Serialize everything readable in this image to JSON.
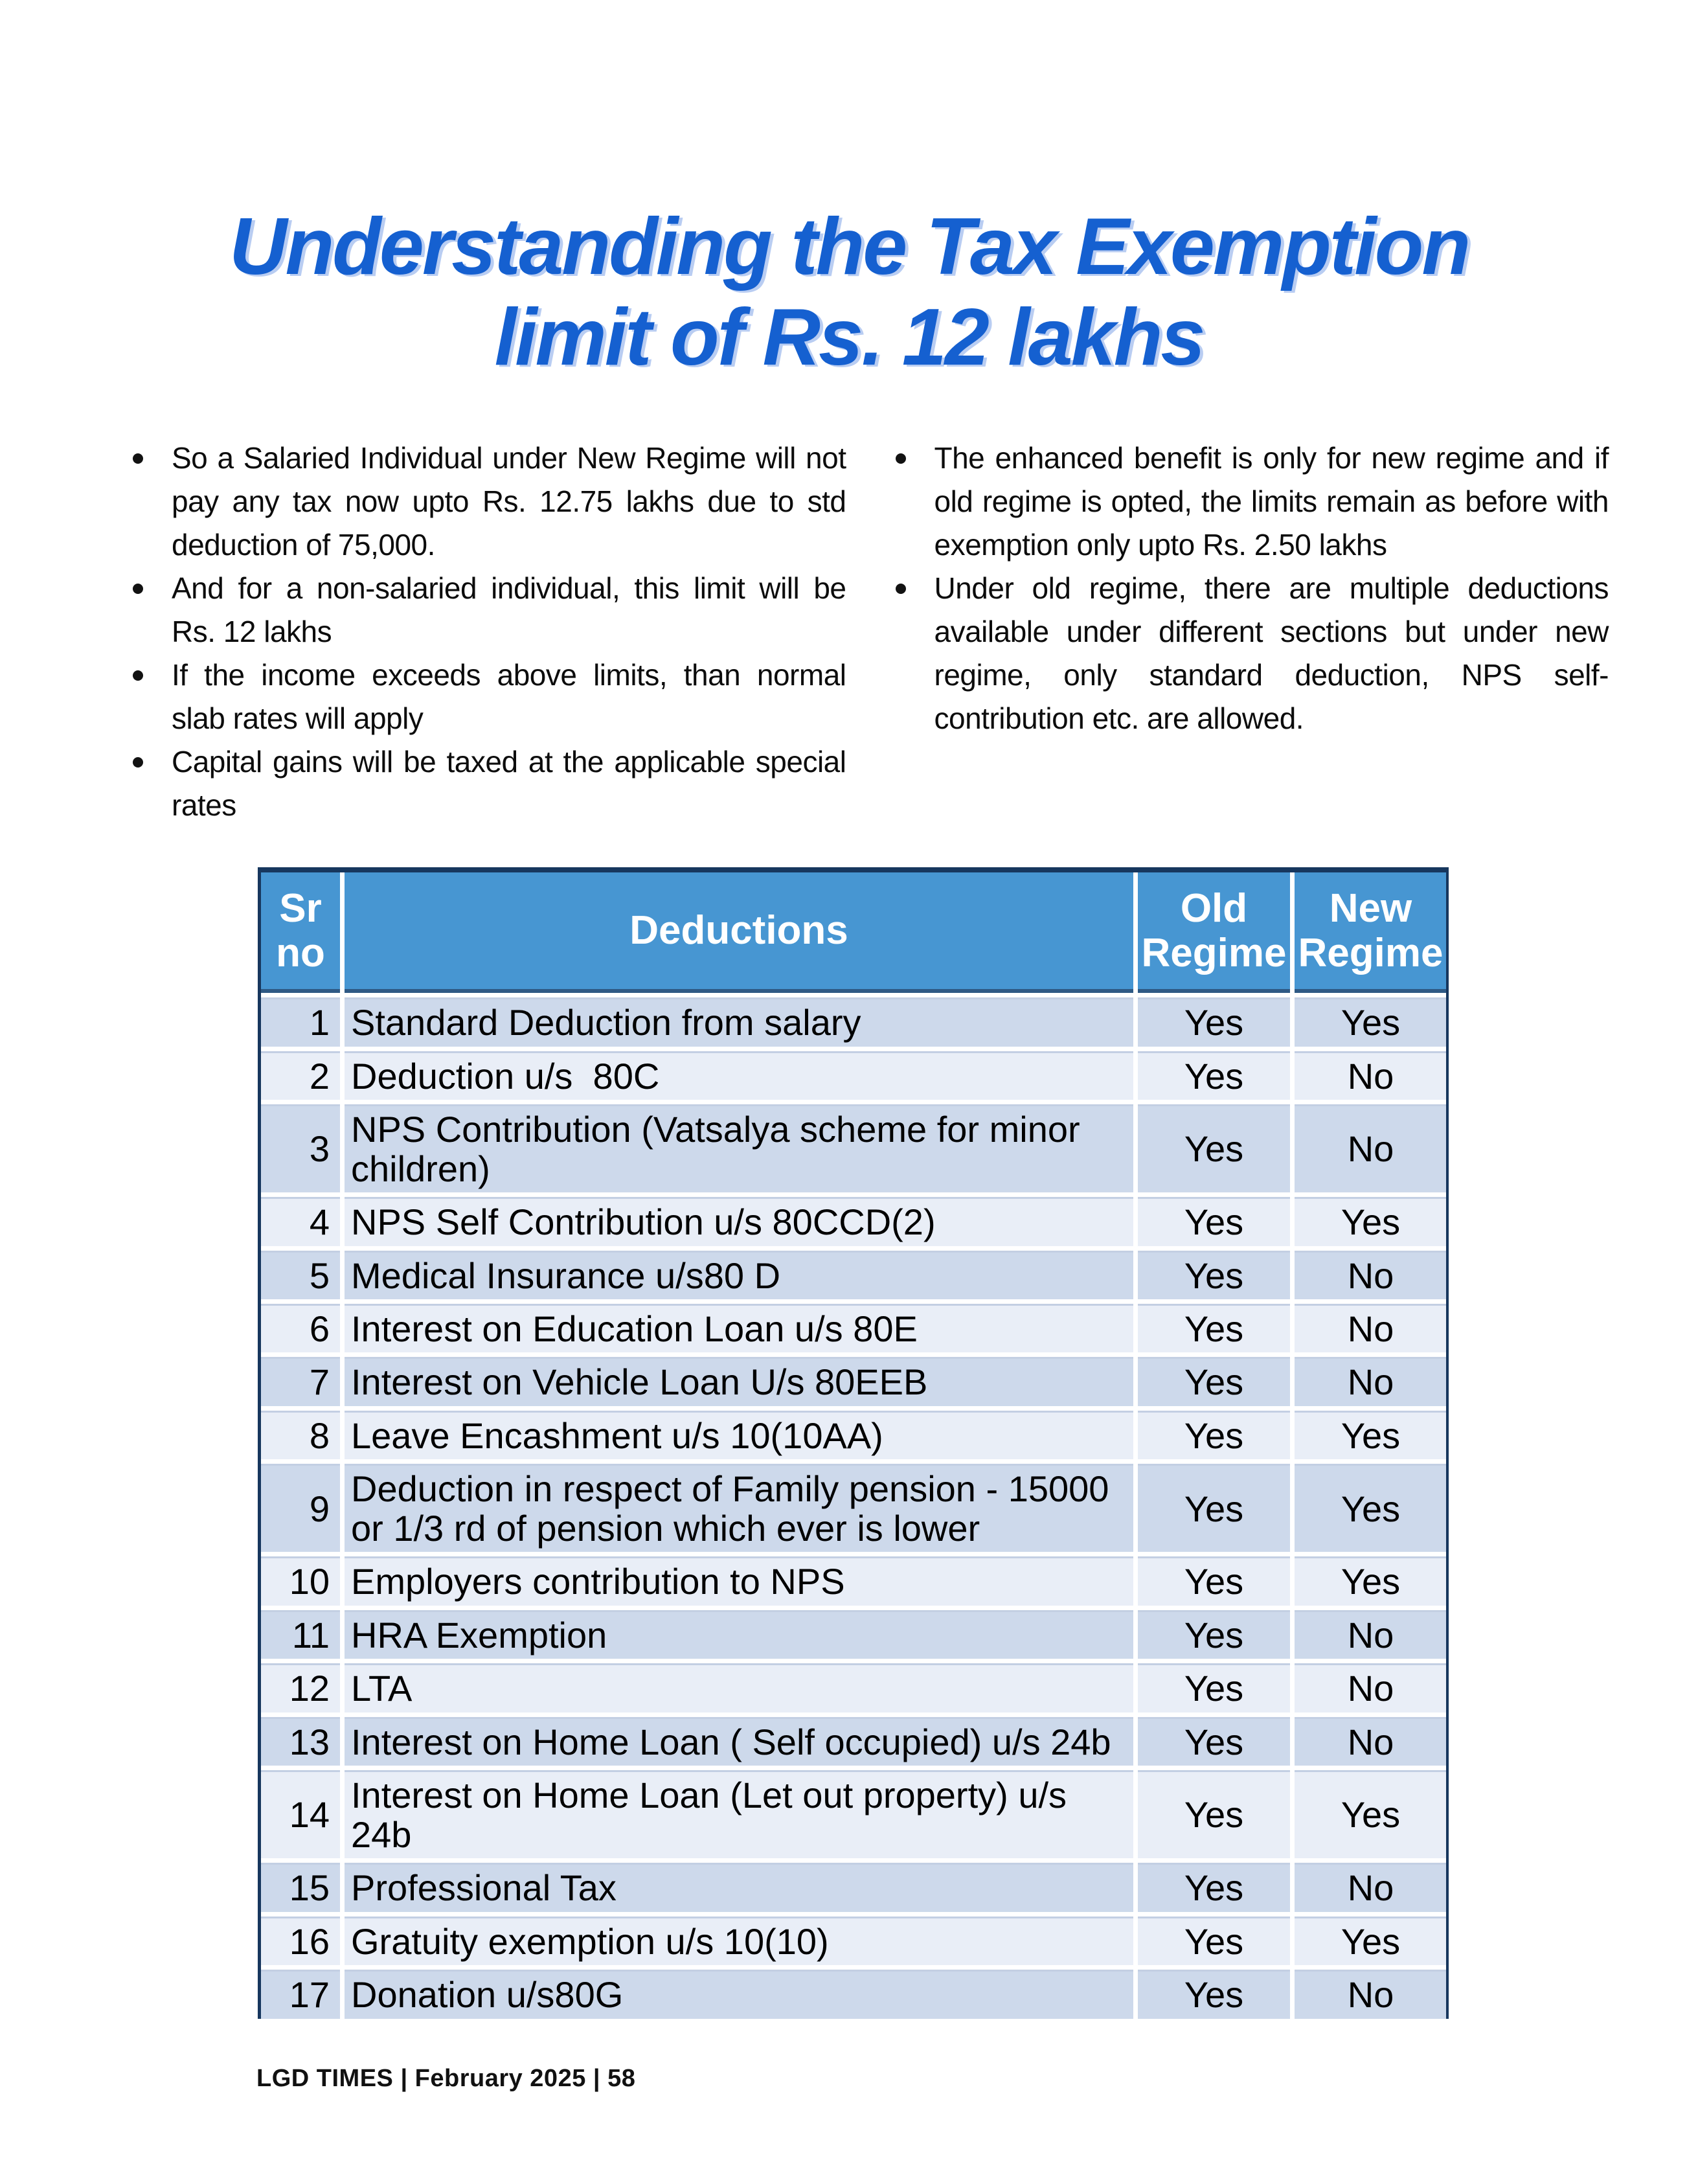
{
  "title": {
    "line1": "Understanding the Tax Exemption",
    "line2": "limit of Rs. 12 lakhs"
  },
  "bullets_left": [
    "So a Salaried Individual under New Regime will not pay any tax now upto Rs. 12.75 lakhs due to std deduction of 75,000.",
    "And for a non-salaried individual, this limit will be Rs. 12 lakhs",
    "If the income exceeds above limits, than normal slab rates will apply",
    "Capital gains will be taxed at the applicable special rates"
  ],
  "bullets_right": [
    "The enhanced benefit is only for new regime and if old regime is opted, the limits remain as before with exemption only upto Rs. 2.50 lakhs",
    "Under old regime, there are multiple deductions available under different sections but under new regime, only standard deduction, NPS self-contribution etc. are allowed."
  ],
  "table": {
    "headers": {
      "sr": "Sr no",
      "deductions": "Deductions",
      "old": "Old Regime",
      "new": "New Regime"
    },
    "rows": [
      {
        "sr": "1",
        "deduction": "Standard Deduction from salary",
        "old": "Yes",
        "new": "Yes"
      },
      {
        "sr": "2",
        "deduction": "Deduction u/s  80C",
        "old": "Yes",
        "new": "No"
      },
      {
        "sr": "3",
        "deduction": "NPS Contribution (Vatsalya scheme for minor children)",
        "old": "Yes",
        "new": "No"
      },
      {
        "sr": "4",
        "deduction": "NPS Self Contribution u/s 80CCD(2)",
        "old": "Yes",
        "new": "Yes"
      },
      {
        "sr": "5",
        "deduction": "Medical Insurance u/s80 D",
        "old": "Yes",
        "new": "No"
      },
      {
        "sr": "6",
        "deduction": "Interest on Education Loan u/s 80E",
        "old": "Yes",
        "new": "No"
      },
      {
        "sr": "7",
        "deduction": "Interest on Vehicle Loan U/s 80EEB",
        "old": "Yes",
        "new": "No"
      },
      {
        "sr": "8",
        "deduction": "Leave Encashment u/s 10(10AA)",
        "old": "Yes",
        "new": "Yes"
      },
      {
        "sr": "9",
        "deduction": "Deduction in respect of Family pension - 15000 or 1/3 rd of pension which ever is lower",
        "old": "Yes",
        "new": "Yes"
      },
      {
        "sr": "10",
        "deduction": "Employers contribution to NPS",
        "old": "Yes",
        "new": "Yes"
      },
      {
        "sr": "11",
        "deduction": "HRA Exemption",
        "old": "Yes",
        "new": "No"
      },
      {
        "sr": "12",
        "deduction": "LTA",
        "old": "Yes",
        "new": "No"
      },
      {
        "sr": "13",
        "deduction": "Interest on Home Loan ( Self occupied) u/s 24b",
        "old": "Yes",
        "new": "No"
      },
      {
        "sr": "14",
        "deduction": "Interest on Home Loan (Let out property) u/s 24b",
        "old": "Yes",
        "new": "Yes"
      },
      {
        "sr": "15",
        "deduction": "Professional Tax",
        "old": "Yes",
        "new": "No"
      },
      {
        "sr": "16",
        "deduction": "Gratuity exemption u/s 10(10)",
        "old": "Yes",
        "new": "Yes"
      },
      {
        "sr": "17",
        "deduction": "Donation u/s80G",
        "old": "Yes",
        "new": "No"
      }
    ]
  },
  "footer": "LGD TIMES | February 2025 | 58",
  "colors": {
    "title_blue": "#1560d0",
    "header_bg": "#4796d2",
    "header_text": "#ffffff",
    "row_odd": "#cdd9eb",
    "row_even": "#e9eef7",
    "border_dark": "#17375e",
    "body_text": "#000000"
  }
}
